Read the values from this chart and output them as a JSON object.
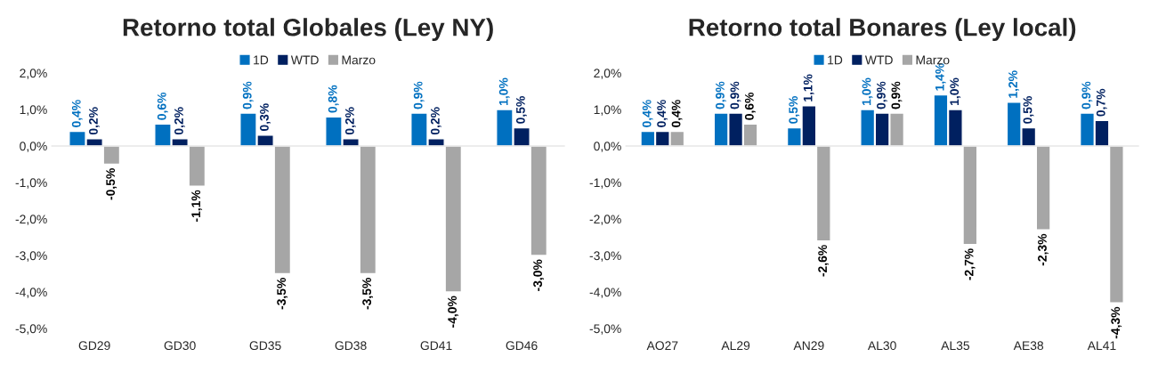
{
  "chart_data": [
    {
      "type": "bar",
      "title": "Retorno total Globales (Ley NY)",
      "categories": [
        "GD29",
        "GD30",
        "GD35",
        "GD38",
        "GD41",
        "GD46"
      ],
      "series": [
        {
          "name": "1D",
          "color": "#0070c0",
          "values": [
            0.4,
            0.6,
            0.9,
            0.8,
            0.9,
            1.0
          ],
          "value_labels": [
            "0,4%",
            "0,6%",
            "0,9%",
            "0,8%",
            "0,9%",
            "1,0%"
          ]
        },
        {
          "name": "WTD",
          "color": "#002060",
          "values": [
            0.2,
            0.2,
            0.3,
            0.2,
            0.2,
            0.5
          ],
          "value_labels": [
            "0,2%",
            "0,2%",
            "0,3%",
            "0,2%",
            "0,2%",
            "0,5%"
          ]
        },
        {
          "name": "Marzo",
          "color": "#a6a6a6",
          "values": [
            -0.5,
            -1.1,
            -3.5,
            -3.5,
            -4.0,
            -3.0
          ],
          "value_labels": [
            "-0,5%",
            "-1,1%",
            "-3,5%",
            "-3,5%",
            "-4,0%",
            "-3,0%"
          ]
        }
      ],
      "ylim": [
        -5,
        2
      ],
      "yticks": [
        {
          "value": -5,
          "label": "-5,0%"
        },
        {
          "value": -4,
          "label": "-4,0%"
        },
        {
          "value": -3,
          "label": "-3,0%"
        },
        {
          "value": -2,
          "label": "-2,0%"
        },
        {
          "value": -1,
          "label": "-1,0%"
        },
        {
          "value": 0,
          "label": "0,0%"
        },
        {
          "value": 1,
          "label": "1,0%"
        },
        {
          "value": 2,
          "label": "2,0%"
        }
      ],
      "legend": "top"
    },
    {
      "type": "bar",
      "title": "Retorno total Bonares (Ley local)",
      "categories": [
        "AO27",
        "AL29",
        "AN29",
        "AL30",
        "AL35",
        "AE38",
        "AL41"
      ],
      "series": [
        {
          "name": "1D",
          "color": "#0070c0",
          "values": [
            0.4,
            0.9,
            0.5,
            1.0,
            1.4,
            1.2,
            0.9
          ],
          "value_labels": [
            "0,4%",
            "0,9%",
            "0,5%",
            "1,0%",
            "1,4%",
            "1,2%",
            "0,9%"
          ]
        },
        {
          "name": "WTD",
          "color": "#002060",
          "values": [
            0.4,
            0.9,
            1.1,
            0.9,
            1.0,
            0.5,
            0.7
          ],
          "value_labels": [
            "0,4%",
            "0,9%",
            "1,1%",
            "0,9%",
            "1,0%",
            "0,5%",
            "0,7%"
          ]
        },
        {
          "name": "Marzo",
          "color": "#a6a6a6",
          "values": [
            0.4,
            0.6,
            -2.6,
            0.9,
            -2.7,
            -2.3,
            -4.3
          ],
          "value_labels": [
            "0,4%",
            "0,6%",
            "-2,6%",
            "0,9%",
            "-2,7%",
            "-2,3%",
            "-4,3%"
          ]
        }
      ],
      "ylim": [
        -5,
        2
      ],
      "yticks": [
        {
          "value": -5,
          "label": "-5,0%"
        },
        {
          "value": -4,
          "label": "-4,0%"
        },
        {
          "value": -3,
          "label": "-3,0%"
        },
        {
          "value": -2,
          "label": "-2,0%"
        },
        {
          "value": -1,
          "label": "-1,0%"
        },
        {
          "value": 0,
          "label": "0,0%"
        },
        {
          "value": 1,
          "label": "1,0%"
        },
        {
          "value": 2,
          "label": "2,0%"
        }
      ],
      "legend": "top"
    }
  ]
}
